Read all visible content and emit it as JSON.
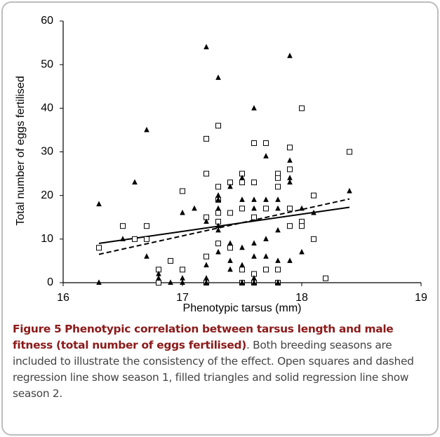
{
  "chart_data": {
    "type": "scatter",
    "xlabel": "Phenotypic tarsus (mm)",
    "ylabel": "Total number of eggs fertilised",
    "xlim": [
      16,
      19
    ],
    "xticks": [
      16,
      17,
      18,
      19
    ],
    "ylim": [
      0,
      60
    ],
    "yticks": [
      0,
      10,
      20,
      30,
      40,
      50,
      60
    ],
    "series": [
      {
        "marker": "square",
        "filled": false,
        "color": "#000000",
        "x": [
          16.3,
          16.5,
          16.6,
          16.7,
          16.7,
          16.8,
          16.8,
          16.9,
          17.0,
          17.0,
          17.2,
          17.2,
          17.2,
          17.2,
          17.2,
          17.3,
          17.3,
          17.3,
          17.3,
          17.3,
          17.3,
          17.4,
          17.4,
          17.4,
          17.5,
          17.5,
          17.5,
          17.5,
          17.5,
          17.6,
          17.6,
          17.6,
          17.6,
          17.6,
          17.7,
          17.7,
          17.7,
          17.8,
          17.8,
          17.8,
          17.8,
          17.8,
          17.9,
          17.9,
          17.9,
          17.9,
          18.0,
          18.0,
          18.0,
          18.1,
          18.1,
          18.2,
          18.4
        ],
        "values": [
          8,
          13,
          10,
          10,
          13,
          3,
          0,
          5,
          3,
          21,
          33,
          25,
          15,
          6,
          0,
          36,
          22,
          19,
          16,
          14,
          9,
          23,
          16,
          8,
          25,
          23,
          17,
          3,
          0,
          32,
          23,
          15,
          2,
          0,
          32,
          17,
          3,
          25,
          24,
          22,
          3,
          0,
          31,
          26,
          17,
          13,
          40,
          14,
          13,
          20,
          10,
          1,
          30
        ]
      },
      {
        "marker": "triangle",
        "filled": true,
        "color": "#000000",
        "x": [
          16.3,
          16.3,
          16.5,
          16.6,
          16.7,
          16.7,
          16.8,
          16.8,
          16.9,
          17.0,
          17.0,
          17.0,
          17.1,
          17.2,
          17.2,
          17.2,
          17.2,
          17.2,
          17.3,
          17.3,
          17.3,
          17.3,
          17.3,
          17.3,
          17.3,
          17.4,
          17.4,
          17.4,
          17.4,
          17.5,
          17.5,
          17.5,
          17.5,
          17.5,
          17.6,
          17.6,
          17.6,
          17.6,
          17.6,
          17.6,
          17.6,
          17.7,
          17.7,
          17.7,
          17.7,
          17.8,
          17.8,
          17.8,
          17.8,
          17.8,
          17.9,
          17.9,
          17.9,
          17.9,
          17.9,
          18.0,
          18.0,
          18.1,
          18.4
        ],
        "values": [
          18,
          0,
          10,
          23,
          35,
          6,
          2,
          1,
          0,
          16,
          1,
          0,
          17,
          54,
          14,
          4,
          1,
          0,
          47,
          20,
          19,
          17,
          13,
          12,
          7,
          22,
          9,
          5,
          3,
          24,
          19,
          8,
          4,
          0,
          40,
          19,
          17,
          9,
          6,
          1,
          0,
          29,
          19,
          10,
          6,
          19,
          17,
          12,
          5,
          0,
          52,
          28,
          24,
          23,
          5,
          17,
          7,
          16,
          21
        ]
      }
    ],
    "regression": [
      {
        "style": "dashed",
        "color": "#000000",
        "x": [
          16.3,
          18.4
        ],
        "values": [
          6.5,
          19.2
        ]
      },
      {
        "style": "solid",
        "color": "#000000",
        "x": [
          16.3,
          18.4
        ],
        "values": [
          9,
          17.3
        ]
      }
    ]
  },
  "caption": {
    "label": "Figure 5",
    "title": "Phenotypic correlation between tarsus length and male fitness (total number of eggs fertilised)",
    "text": ". Both breeding seasons are included to illustrate the consistency of the effect. Open squares and dashed regression line show season 1, filled triangles and solid regression line show season 2."
  }
}
